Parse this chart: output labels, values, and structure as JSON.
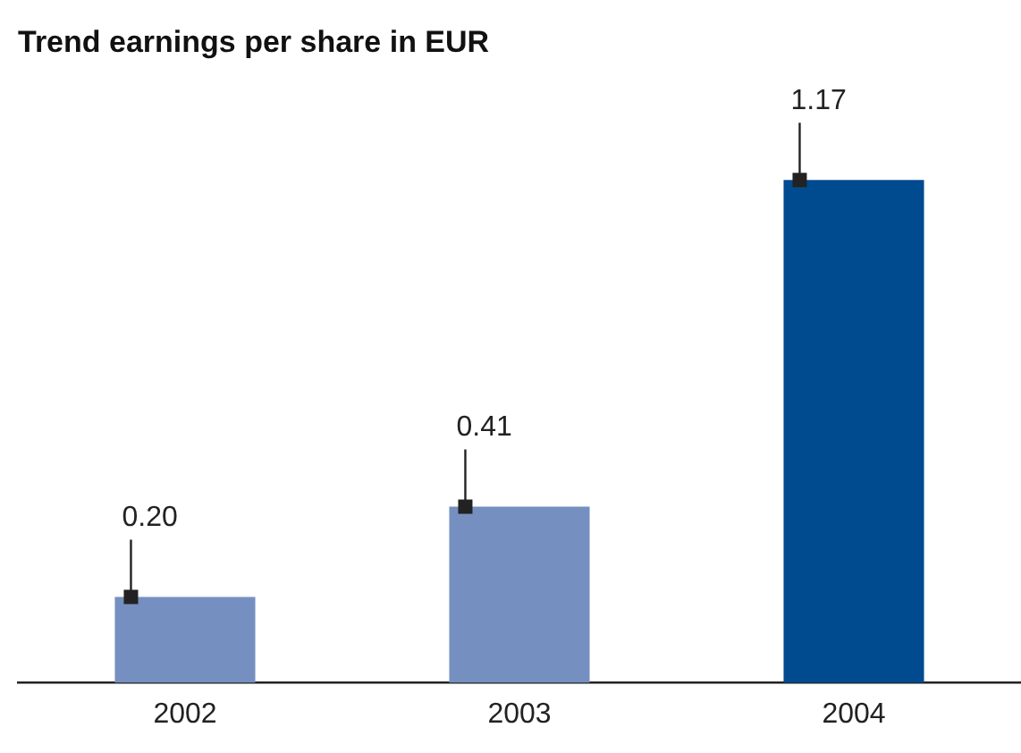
{
  "chart_data": {
    "type": "bar",
    "title": "Trend earnings per share in EUR",
    "categories": [
      "2002",
      "2003",
      "2004"
    ],
    "values": [
      0.2,
      0.41,
      1.17
    ],
    "value_labels": [
      "0.20",
      "0.41",
      "1.17"
    ],
    "colors": [
      "#7590c0",
      "#7590c0",
      "#004b8f"
    ],
    "grid": false,
    "legend": false
  }
}
